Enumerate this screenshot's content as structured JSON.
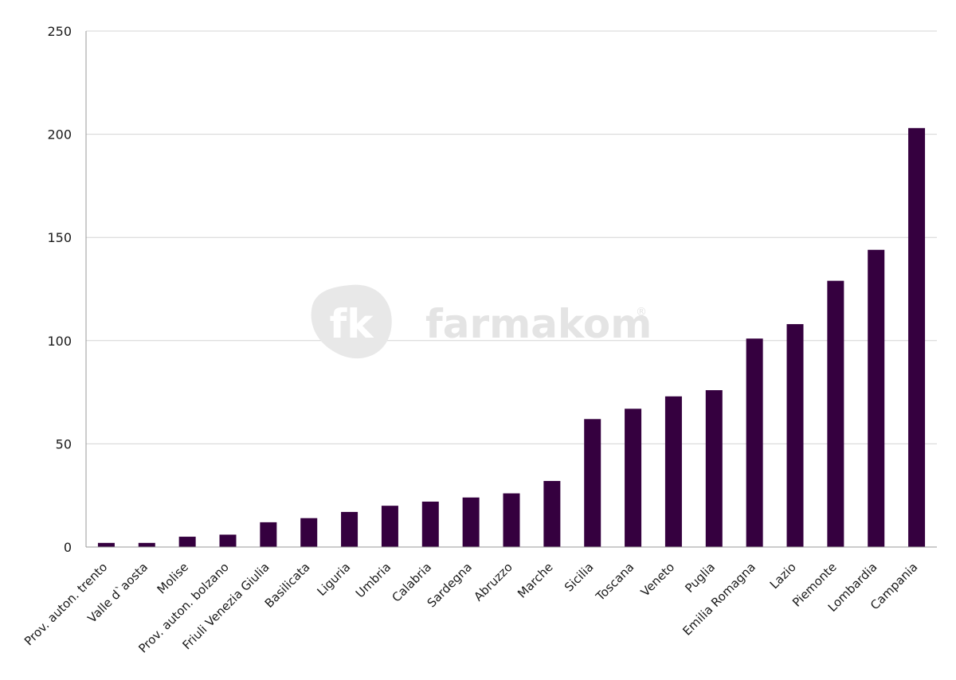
{
  "watermark": {
    "mark": "fk",
    "brand": "farmakom",
    "registered": "®"
  },
  "chart_data": {
    "type": "bar",
    "categories": [
      "Prov. auton. trento",
      "Valle d`aosta",
      "Molise",
      "Prov. auton. bolzano",
      "Friuli Venezia Giulia",
      "Basilicata",
      "Liguria",
      "Umbria",
      "Calabria",
      "Sardegna",
      "Abruzzo",
      "Marche",
      "Sicilia",
      "Toscana",
      "Veneto",
      "Puglia",
      "Emilia Romagna",
      "Lazio",
      "Piemonte",
      "Lombardia",
      "Campania"
    ],
    "values": [
      2,
      2,
      5,
      6,
      12,
      14,
      17,
      20,
      22,
      24,
      26,
      32,
      62,
      67,
      73,
      76,
      101,
      108,
      129,
      144,
      203
    ],
    "title": "",
    "xlabel": "",
    "ylabel": "",
    "ylim": [
      0,
      250
    ],
    "yticks": [
      0,
      50,
      100,
      150,
      200,
      250
    ],
    "grid": true,
    "legend": "none",
    "bar_color": "#35003f",
    "grid_color": "#d4d4d4",
    "axis_color": "#9a9a9a"
  }
}
